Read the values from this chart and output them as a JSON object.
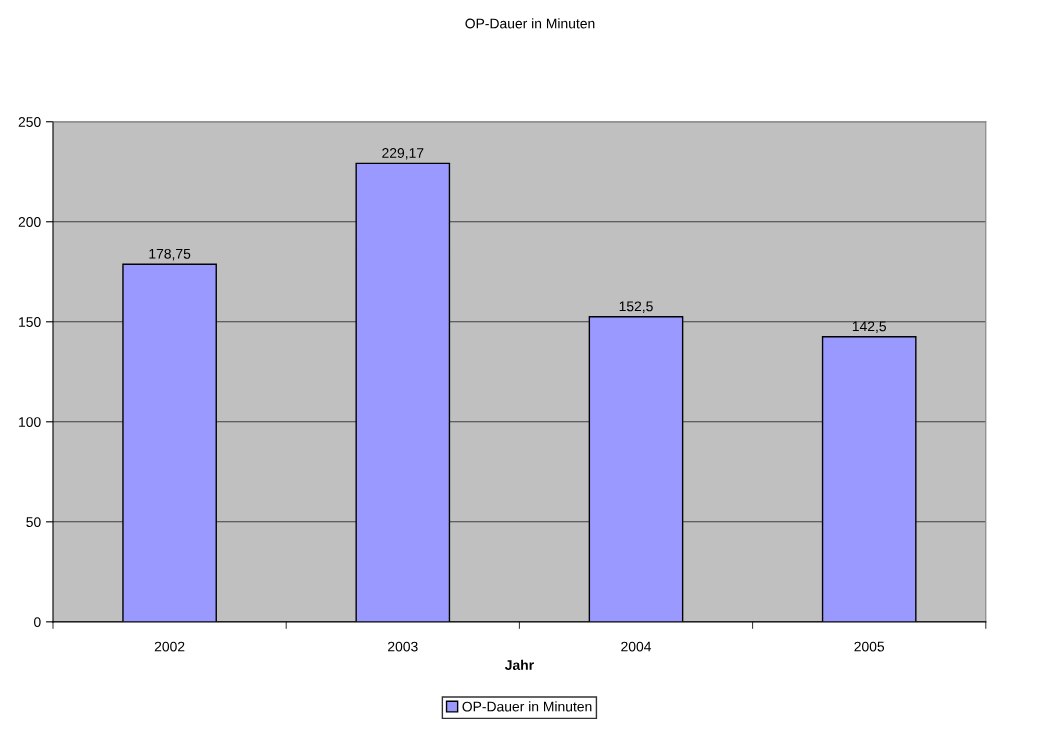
{
  "chart_data": {
    "type": "bar",
    "title": "OP-Dauer in Minuten",
    "xlabel": "Jahr",
    "categories": [
      "2002",
      "2003",
      "2004",
      "2005"
    ],
    "series": [
      {
        "name": "OP-Dauer in Minuten",
        "color": "#9999ff",
        "values": [
          178.75,
          229.17,
          152.5,
          142.5
        ],
        "value_labels": [
          "178,75",
          "229,17",
          "152,5",
          "142,5"
        ]
      }
    ],
    "ylim": [
      0,
      250
    ],
    "yticks": [
      0,
      50,
      100,
      150,
      200,
      250
    ],
    "grid": "y",
    "legend": "bottom"
  }
}
